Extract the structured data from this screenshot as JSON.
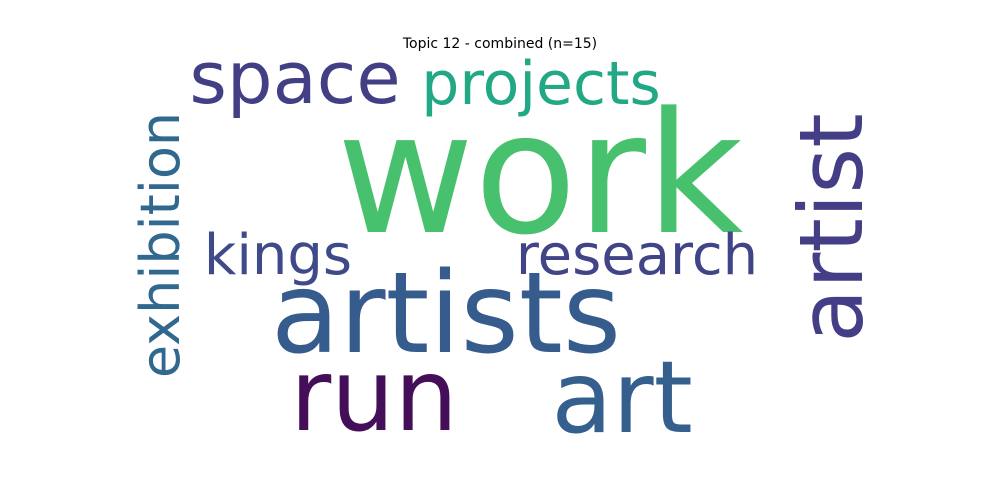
{
  "figure": {
    "title": "Topic 12 - combined (n=15)"
  },
  "words": [
    {
      "text": "work",
      "color": "#48c16e"
    },
    {
      "text": "artists",
      "color": "#365c8d"
    },
    {
      "text": "run",
      "color": "#440f58"
    },
    {
      "text": "art",
      "color": "#355f8d"
    },
    {
      "text": "artist",
      "color": "#433e85"
    },
    {
      "text": "space",
      "color": "#423f85"
    },
    {
      "text": "projects",
      "color": "#22a884"
    },
    {
      "text": "kings",
      "color": "#3e4a89"
    },
    {
      "text": "research",
      "color": "#414487"
    },
    {
      "text": "exhibition",
      "color": "#31688e"
    }
  ]
}
